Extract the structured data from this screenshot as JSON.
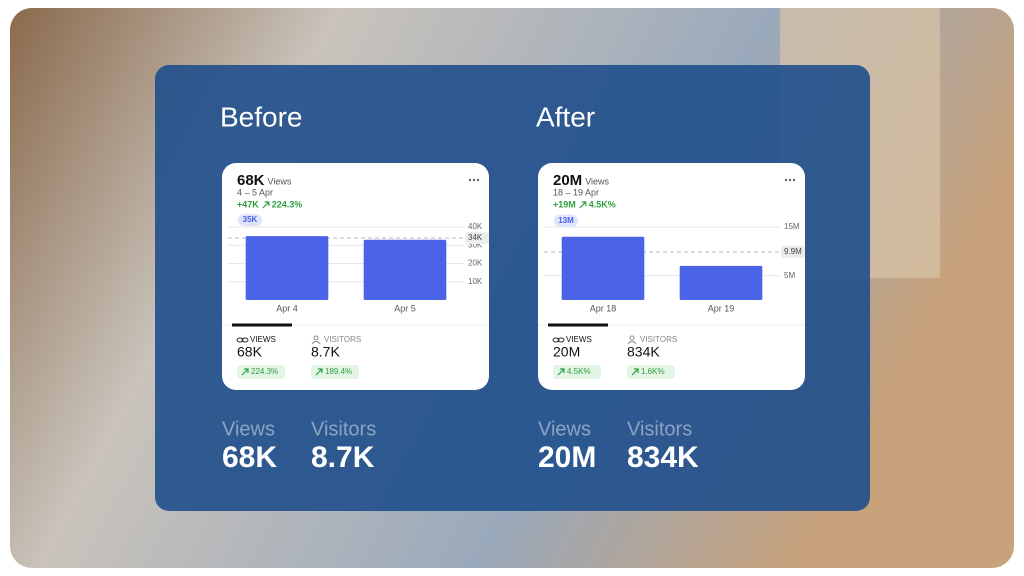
{
  "panels": [
    {
      "heading": "Before",
      "card": {
        "total": "68K",
        "total_label": "Views",
        "date_range": "4 – 5 Apr",
        "change": "+47K",
        "change_pct": "224.3%",
        "metrics": [
          {
            "name": "VIEWS",
            "value": "68K",
            "change": "224.3%"
          },
          {
            "name": "VISITORS",
            "value": "8.7K",
            "change": "189.4%"
          }
        ]
      },
      "summary": [
        {
          "label": "Views",
          "value": "68K"
        },
        {
          "label": "Visitors",
          "value": "8.7K"
        }
      ]
    },
    {
      "heading": "After",
      "card": {
        "total": "20M",
        "total_label": "Views",
        "date_range": "18 – 19 Apr",
        "change": "+19M",
        "change_pct": "4.5K%",
        "metrics": [
          {
            "name": "VIEWS",
            "value": "20M",
            "change": "4.5K%"
          },
          {
            "name": "VISITORS",
            "value": "834K",
            "change": "1.6K%"
          }
        ]
      },
      "summary": [
        {
          "label": "Views",
          "value": "20M"
        },
        {
          "label": "Visitors",
          "value": "834K"
        }
      ]
    }
  ],
  "chart_data": [
    {
      "type": "bar",
      "categories": [
        "Apr 4",
        "Apr 5"
      ],
      "values": [
        35000,
        33000
      ],
      "value_labels": [
        "35K",
        null
      ],
      "color": "#4a63e7",
      "ylim": [
        0,
        40000
      ],
      "yticks": [
        {
          "value": 10000,
          "label": "10K"
        },
        {
          "value": 20000,
          "label": "20K"
        },
        {
          "value": 30000,
          "label": "30K"
        },
        {
          "value": 40000,
          "label": "40K"
        }
      ],
      "reference": {
        "value": 34000,
        "label": "34K"
      },
      "grid": true
    },
    {
      "type": "bar",
      "categories": [
        "Apr 18",
        "Apr 19"
      ],
      "values": [
        13000000,
        7000000
      ],
      "value_labels": [
        "13M",
        null
      ],
      "color": "#4a63e7",
      "ylim": [
        0,
        15000000
      ],
      "yticks": [
        {
          "value": 5000000,
          "label": "5M"
        },
        {
          "value": 15000000,
          "label": "15M"
        }
      ],
      "reference": {
        "value": 9900000,
        "label": "9.9M"
      },
      "grid": true
    }
  ]
}
